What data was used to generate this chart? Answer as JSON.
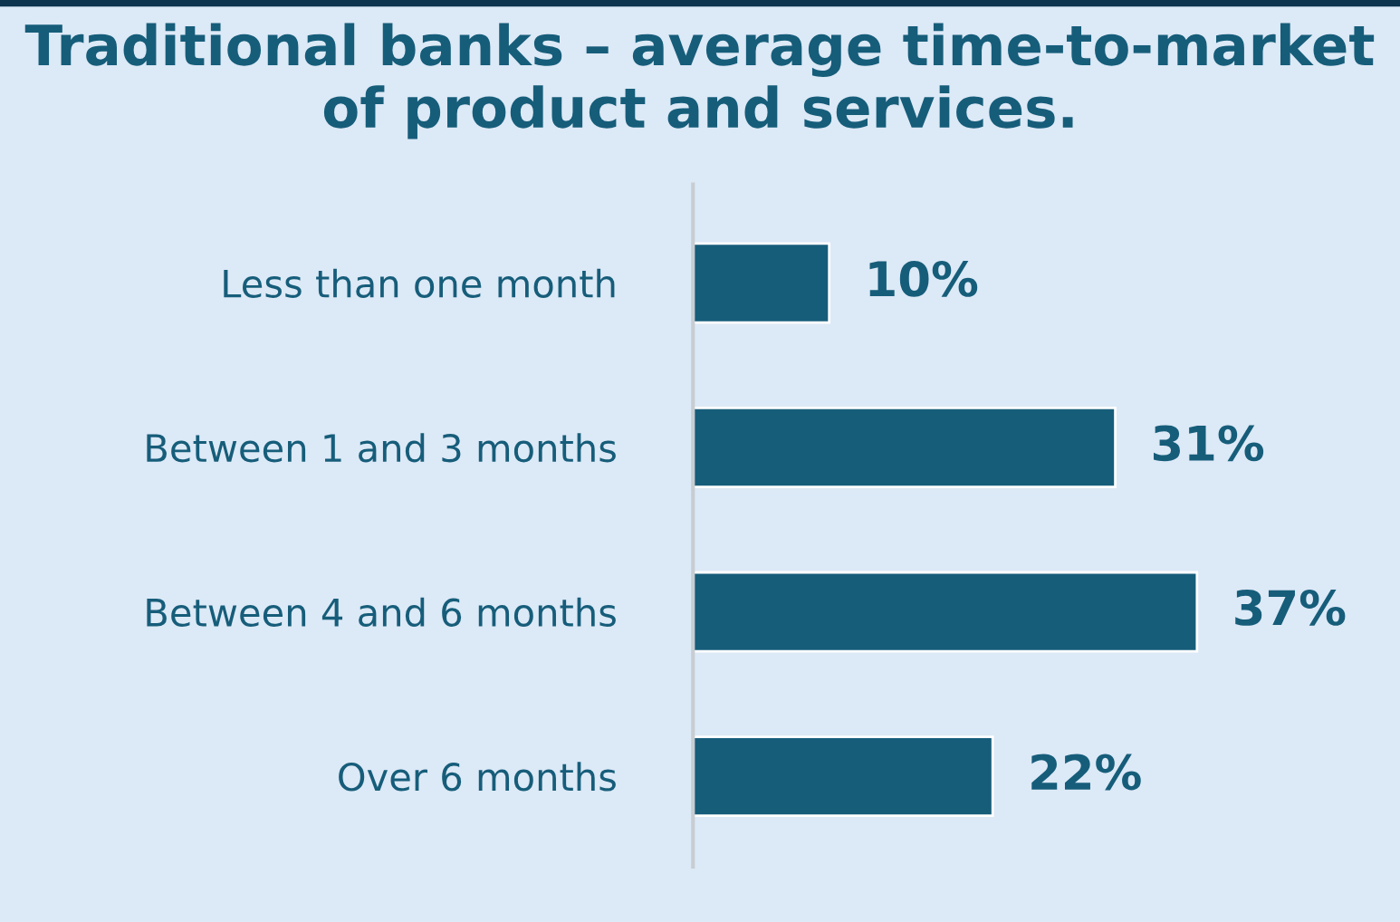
{
  "chart_data": {
    "type": "bar",
    "orientation": "horizontal",
    "title": "Traditional banks – average time-to-market of product and services.",
    "categories": [
      "Less than one month",
      "Between 1 and 3 months",
      "Between 4 and 6 months",
      "Over 6 months"
    ],
    "values": [
      10,
      31,
      37,
      22
    ],
    "value_labels": [
      "10%",
      "31%",
      "37%",
      "22%"
    ],
    "color": "#165d7a",
    "tick_labels": "y",
    "grid": false,
    "legend": false
  }
}
